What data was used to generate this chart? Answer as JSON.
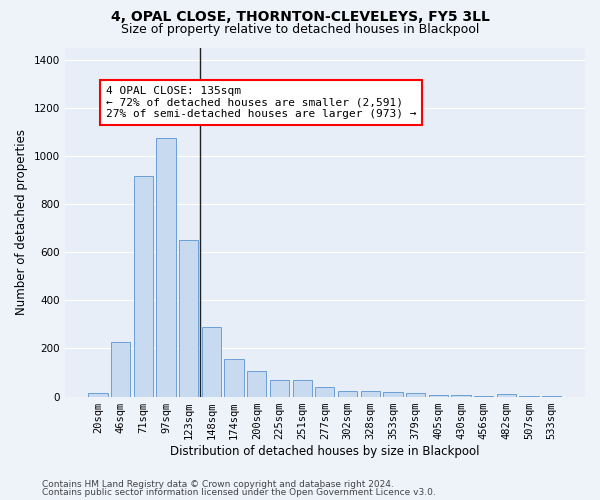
{
  "title": "4, OPAL CLOSE, THORNTON-CLEVELEYS, FY5 3LL",
  "subtitle": "Size of property relative to detached houses in Blackpool",
  "xlabel": "Distribution of detached houses by size in Blackpool",
  "ylabel": "Number of detached properties",
  "bar_color": "#c8daf0",
  "bar_edge_color": "#6a9fd8",
  "categories": [
    "20sqm",
    "46sqm",
    "71sqm",
    "97sqm",
    "123sqm",
    "148sqm",
    "174sqm",
    "200sqm",
    "225sqm",
    "251sqm",
    "277sqm",
    "302sqm",
    "328sqm",
    "353sqm",
    "379sqm",
    "405sqm",
    "430sqm",
    "456sqm",
    "482sqm",
    "507sqm",
    "533sqm"
  ],
  "values": [
    15,
    225,
    915,
    1075,
    650,
    290,
    155,
    105,
    70,
    70,
    38,
    25,
    22,
    20,
    15,
    8,
    5,
    3,
    10,
    3,
    2
  ],
  "ylim": [
    0,
    1450
  ],
  "yticks": [
    0,
    200,
    400,
    600,
    800,
    1000,
    1200,
    1400
  ],
  "annotation_text": "4 OPAL CLOSE: 135sqm\n← 72% of detached houses are smaller (2,591)\n27% of semi-detached houses are larger (973) →",
  "vline_between": [
    4,
    5
  ],
  "footnote1": "Contains HM Land Registry data © Crown copyright and database right 2024.",
  "footnote2": "Contains public sector information licensed under the Open Government Licence v3.0.",
  "bg_color": "#eef2f9",
  "plot_bg_color": "#e8eef7",
  "grid_color": "#ffffff",
  "title_fontsize": 10,
  "subtitle_fontsize": 9,
  "axis_label_fontsize": 8.5,
  "tick_fontsize": 7.5,
  "annotation_fontsize": 8,
  "footnote_fontsize": 6.5
}
